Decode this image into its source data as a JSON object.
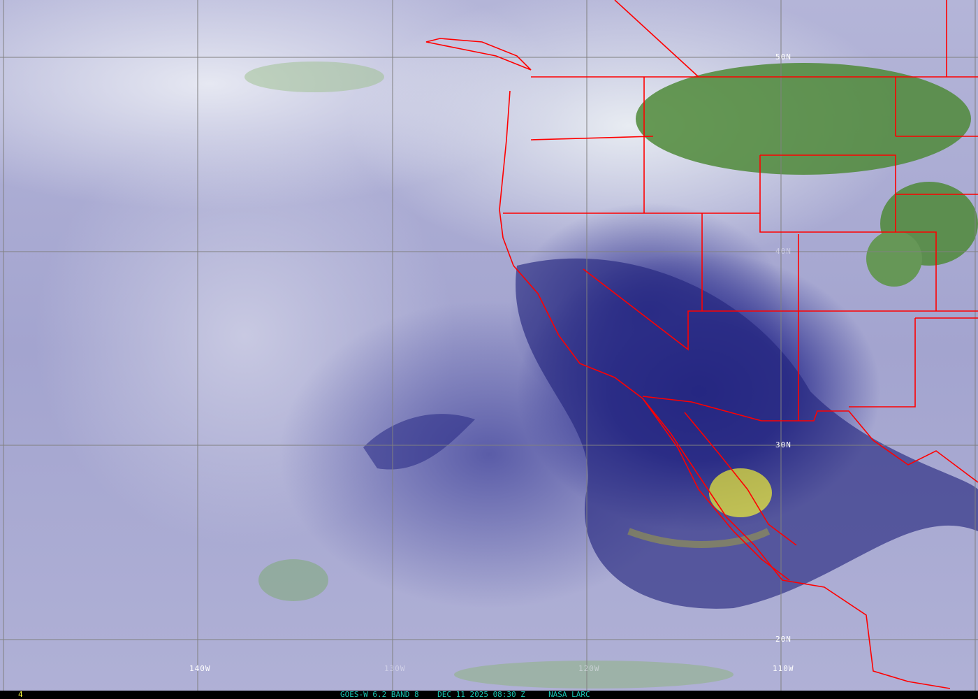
{
  "product": "GOES-W 6.2 BAND 8",
  "datetime": "DEC 11 2025 08:30 Z",
  "source": "NASA LARC",
  "frame_number": "4",
  "longitude_labels": [
    "140W",
    "130W",
    "120W",
    "110W"
  ],
  "latitude_labels": [
    "50N",
    "40N",
    "30N",
    "20N"
  ],
  "colors": {
    "boundaries": "#ff0000",
    "grid": "#808080",
    "moist": "#2a2c8a",
    "dry": "#3d7a2a",
    "very_moist": "#c8c840",
    "caption": "#19c6b4",
    "frame": "#ffff40"
  }
}
